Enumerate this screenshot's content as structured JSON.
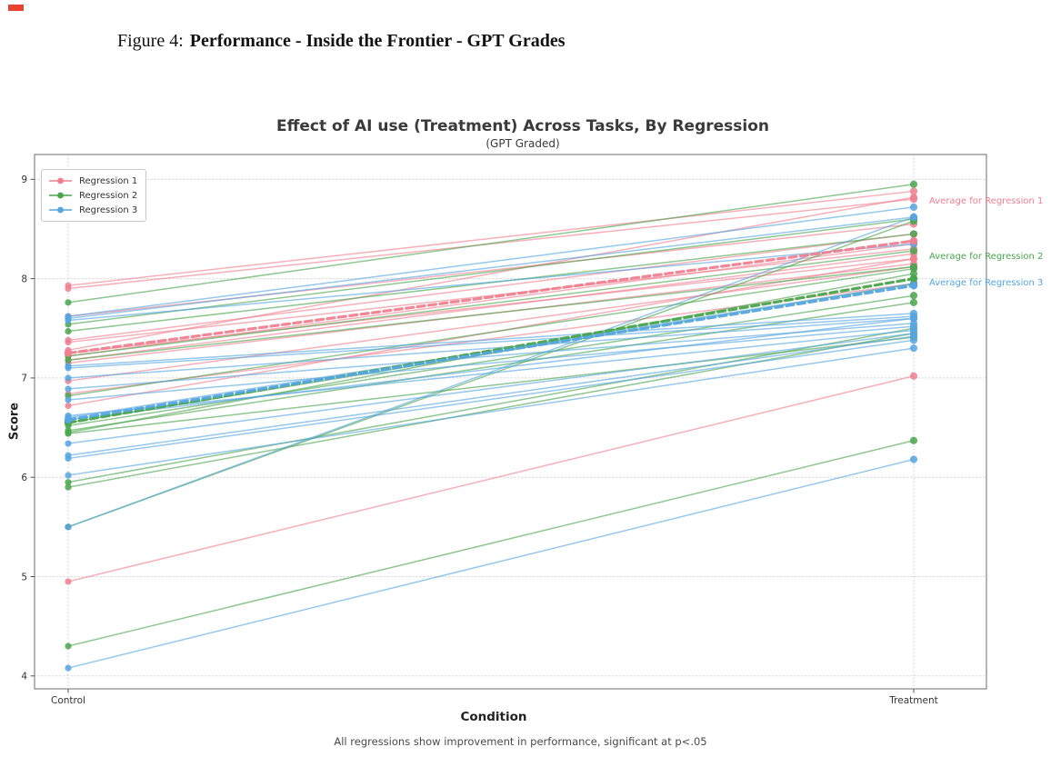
{
  "page": {
    "corner_mark_color": "#e8432f",
    "caption": {
      "prefix": "Figure 4:",
      "title": "Performance - Inside the Frontier - GPT Grades"
    },
    "footnote": "All regressions show improvement in performance, significant at p<.05"
  },
  "chart_data": {
    "type": "line",
    "chart_kind": "paired slope chart (control vs treatment per task)",
    "title": "Effect of AI use (Treatment) Across Tasks, By Regression",
    "subtitle": "(GPT Graded)",
    "xlabel": "Condition",
    "ylabel": "Score",
    "categories": [
      "Control",
      "Treatment"
    ],
    "yticks": [
      4,
      5,
      6,
      7,
      8,
      9
    ],
    "ylim": [
      3.87,
      9.25
    ],
    "grid": "dotted gridlines on both axes",
    "legend_position": "upper left",
    "series": [
      {
        "name": "Regression 1",
        "color": "#ef7f90",
        "average_label": "Average for Regression 1",
        "average": [
          7.25,
          8.38
        ],
        "lines": [
          [
            7.93,
            8.88
          ],
          [
            7.9,
            8.8
          ],
          [
            7.62,
            8.55
          ],
          [
            7.38,
            8.45
          ],
          [
            7.36,
            8.3
          ],
          [
            7.28,
            8.82
          ],
          [
            7.25,
            8.2
          ],
          [
            7.22,
            8.35
          ],
          [
            7.18,
            8.25
          ],
          [
            7.15,
            8.15
          ],
          [
            6.97,
            8.12
          ],
          [
            6.84,
            7.95
          ],
          [
            6.72,
            8.2
          ],
          [
            4.95,
            7.02
          ]
        ]
      },
      {
        "name": "Regression 2",
        "color": "#4aa54d",
        "average_label": "Average for Regression 2",
        "average": [
          6.55,
          8.0
        ],
        "lines": [
          [
            7.76,
            8.95
          ],
          [
            7.54,
            8.6
          ],
          [
            7.47,
            8.45
          ],
          [
            7.22,
            8.28
          ],
          [
            7.18,
            8.12
          ],
          [
            6.82,
            8.1
          ],
          [
            6.55,
            7.95
          ],
          [
            6.52,
            7.83
          ],
          [
            6.47,
            7.76
          ],
          [
            6.45,
            8.05
          ],
          [
            6.44,
            7.41
          ],
          [
            5.95,
            7.5
          ],
          [
            5.9,
            7.45
          ],
          [
            5.5,
            8.58
          ],
          [
            4.3,
            6.37
          ]
        ]
      },
      {
        "name": "Regression 3",
        "color": "#56a5e1",
        "average_label": "Average for Regression 3",
        "average": [
          6.58,
          7.93
        ],
        "lines": [
          [
            7.62,
            8.72
          ],
          [
            7.6,
            8.62
          ],
          [
            7.58,
            8.35
          ],
          [
            7.12,
            7.65
          ],
          [
            7.1,
            7.62
          ],
          [
            7.0,
            7.6
          ],
          [
            6.89,
            7.55
          ],
          [
            6.78,
            7.52
          ],
          [
            6.62,
            7.48
          ],
          [
            6.6,
            7.95
          ],
          [
            6.58,
            7.6
          ],
          [
            6.34,
            7.45
          ],
          [
            6.22,
            7.42
          ],
          [
            6.19,
            7.38
          ],
          [
            6.02,
            7.3
          ],
          [
            5.5,
            8.62
          ],
          [
            4.08,
            6.18
          ]
        ]
      }
    ]
  }
}
